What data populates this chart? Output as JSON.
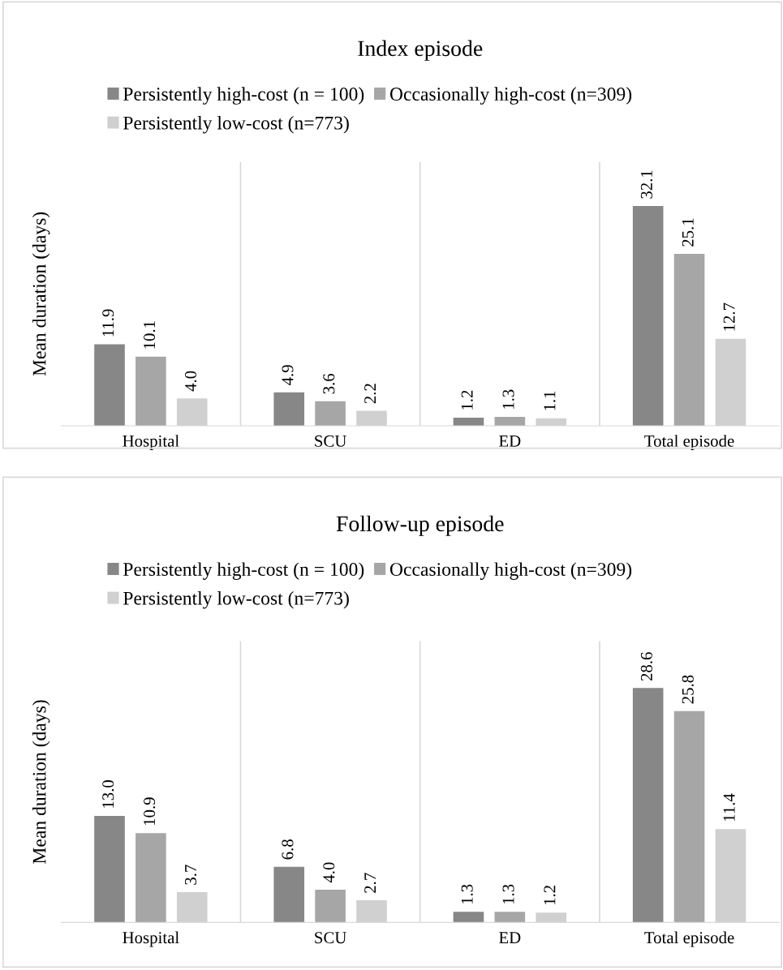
{
  "chart_data": [
    {
      "type": "bar",
      "title": "Index episode",
      "ylabel": "Mean duration (days)",
      "categories": [
        "Hospital",
        "SCU",
        "ED",
        "Total episode"
      ],
      "series": [
        {
          "name": "Persistently high-cost (n = 100)",
          "color": "#878787",
          "values": [
            11.9,
            4.9,
            1.2,
            32.1
          ],
          "value_labels": [
            "11.9",
            "4.9",
            "1.2",
            "32.1"
          ]
        },
        {
          "name": "Occasionally high-cost (n=309)",
          "color": "#a6a6a6",
          "values": [
            10.1,
            3.6,
            1.3,
            25.1
          ],
          "value_labels": [
            "10.1",
            "3.6",
            "1.3",
            "25.1"
          ]
        },
        {
          "name": "Persistently low-cost (n=773)",
          "color": "#d0d0d0",
          "values": [
            4.0,
            2.2,
            1.1,
            12.7
          ],
          "value_labels": [
            "4.0",
            "2.2",
            "1.1",
            "12.7"
          ]
        }
      ],
      "legend": "top",
      "grid": "x",
      "tick_labels": "x"
    },
    {
      "type": "bar",
      "title": "Follow-up episode",
      "ylabel": "Mean duration (days)",
      "categories": [
        "Hospital",
        "SCU",
        "ED",
        "Total episode"
      ],
      "series": [
        {
          "name": "Persistently high-cost (n = 100)",
          "color": "#878787",
          "values": [
            13.0,
            6.8,
            1.3,
            28.6
          ],
          "value_labels": [
            "13.0",
            "6.8",
            "1.3",
            "28.6"
          ]
        },
        {
          "name": "Occasionally high-cost (n=309)",
          "color": "#a6a6a6",
          "values": [
            10.9,
            4.0,
            1.3,
            25.8
          ],
          "value_labels": [
            "10.9",
            "4.0",
            "1.3",
            "25.8"
          ]
        },
        {
          "name": "Persistently low-cost (n=773)",
          "color": "#d0d0d0",
          "values": [
            3.7,
            2.7,
            1.2,
            11.4
          ],
          "value_labels": [
            "3.7",
            "2.7",
            "1.2",
            "11.4"
          ]
        }
      ],
      "legend": "top",
      "grid": "x",
      "tick_labels": "x"
    }
  ]
}
